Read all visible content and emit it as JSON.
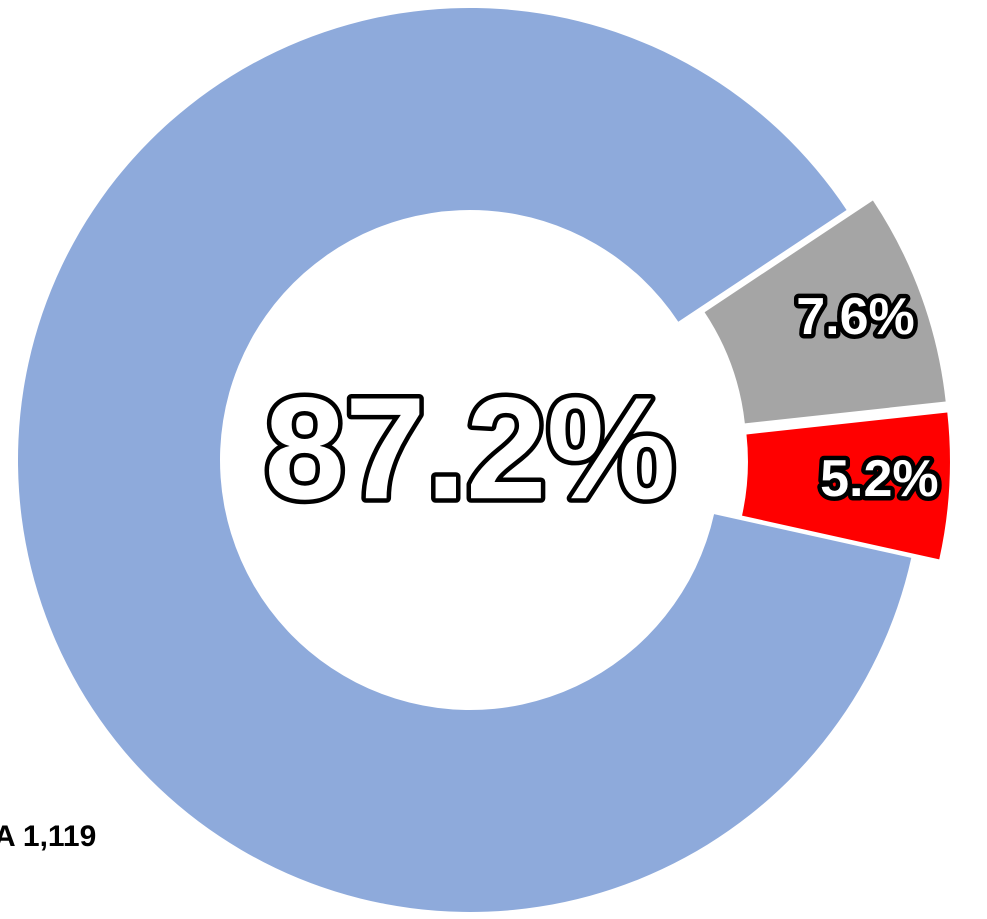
{
  "chart_data": {
    "type": "pie",
    "donut": true,
    "values": [
      87.2,
      7.6,
      5.2
    ],
    "value_labels": [
      "87.2%",
      "7.6%",
      "5.2%"
    ],
    "colors": [
      "#8eaadb",
      "#a5a5a5",
      "#ff0000"
    ],
    "annotation": "A 1,119"
  }
}
